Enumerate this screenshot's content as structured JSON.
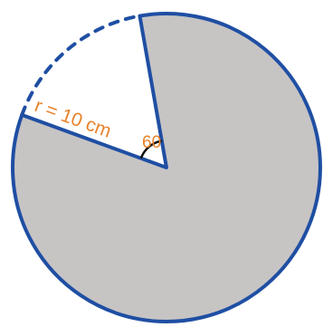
{
  "diagram": {
    "type": "circle-sector",
    "radius_label": "r = 10 cm",
    "angle_label": "60",
    "missing_sector_angle_deg": 60,
    "shaded_region": "major-sector",
    "colors": {
      "outline": "#1f4fa3",
      "fill": "#c7c4c4",
      "label": "#e8822a",
      "angle_arc": "#111111",
      "background": "#ffffff"
    }
  }
}
